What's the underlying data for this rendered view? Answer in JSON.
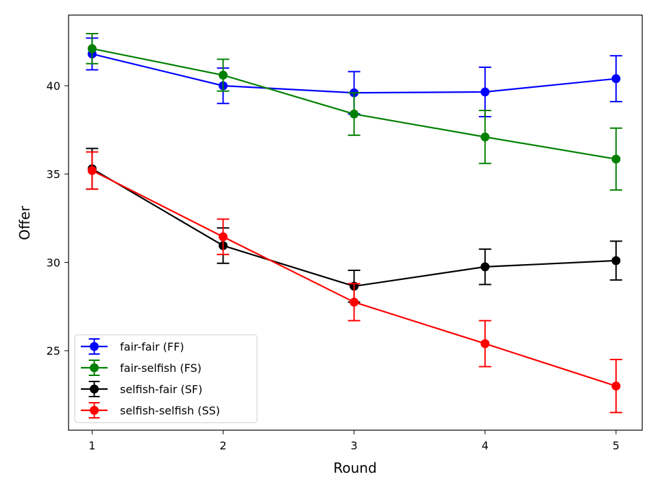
{
  "chart_data": {
    "type": "line",
    "title": "",
    "xlabel": "Round",
    "ylabel": "Offer",
    "x": [
      1,
      2,
      3,
      4,
      5
    ],
    "xticks": [
      "1",
      "2",
      "3",
      "4",
      "5"
    ],
    "yticks": [
      "25",
      "30",
      "35",
      "40"
    ],
    "xlim": [
      0.82,
      5.2
    ],
    "ylim": [
      20.5,
      44.0
    ],
    "grid": false,
    "legend_position": "lower-left",
    "series": [
      {
        "name": "fair-fair (FF)",
        "color": "#0000ff",
        "values": [
          41.8,
          40.0,
          39.6,
          39.65,
          40.4
        ],
        "errors": [
          0.9,
          1.0,
          1.2,
          1.4,
          1.3
        ]
      },
      {
        "name": "fair-selfish (FS)",
        "color": "#008000",
        "values": [
          42.1,
          40.6,
          38.4,
          37.1,
          35.85
        ],
        "errors": [
          0.85,
          0.9,
          1.2,
          1.5,
          1.75
        ]
      },
      {
        "name": "selfish-fair (SF)",
        "color": "#000000",
        "values": [
          35.3,
          30.95,
          28.65,
          29.75,
          30.1
        ],
        "errors": [
          1.15,
          1.0,
          0.9,
          1.0,
          1.1
        ]
      },
      {
        "name": "selfish-selfish (SS)",
        "color": "#ff0000",
        "values": [
          35.2,
          31.45,
          27.75,
          25.4,
          23.0
        ],
        "errors": [
          1.05,
          1.0,
          1.05,
          1.3,
          1.5
        ]
      }
    ]
  }
}
